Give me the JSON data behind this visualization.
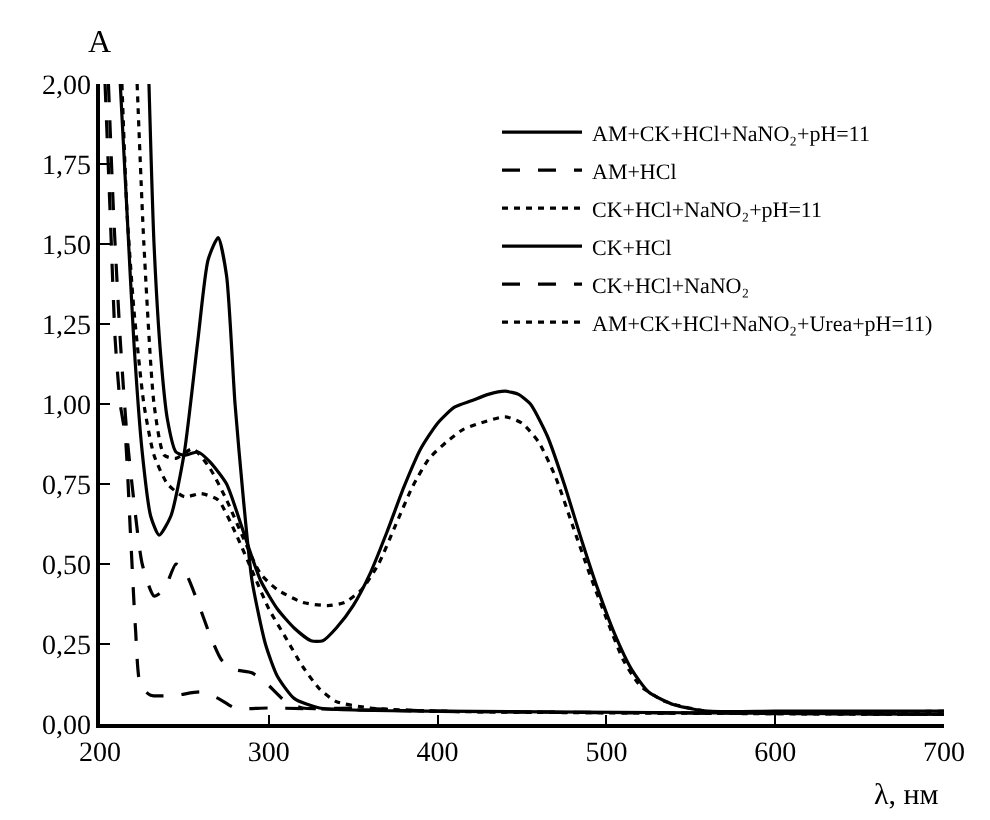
{
  "chart_data": {
    "type": "line",
    "xlabel": "λ, нм",
    "ylabel": "A",
    "xlim": [
      200,
      700
    ],
    "xticks": [
      200,
      300,
      400,
      500,
      600,
      700
    ],
    "ylim": [
      0,
      2
    ],
    "yticks": [
      {
        "value": 0,
        "label": "0,00"
      },
      {
        "value": 0.25,
        "label": "0,25"
      },
      {
        "value": 0.5,
        "label": "0,50"
      },
      {
        "value": 0.75,
        "label": "0,75"
      },
      {
        "value": 1,
        "label": "1,00"
      },
      {
        "value": 1.25,
        "label": "1,25"
      },
      {
        "value": 1.5,
        "label": "1,50"
      },
      {
        "value": 1.75,
        "label": "1,75"
      },
      {
        "value": 2,
        "label": "2,00"
      }
    ],
    "grid": false,
    "legend": "top right",
    "marker": "none",
    "series": [
      {
        "name": "AM+CK+HCl+NaNO₂+pH=11",
        "color": "#000000",
        "line_style": "solid",
        "x": [
          229,
          232,
          236,
          240,
          245,
          250,
          258,
          265,
          275,
          285,
          295,
          305,
          315,
          325,
          332,
          340,
          350,
          360,
          370,
          380,
          390,
          400,
          410,
          420,
          430,
          440,
          448,
          455,
          465,
          475,
          485,
          495,
          505,
          515,
          525,
          540,
          560,
          600,
          650,
          700
        ],
        "values": [
          2.0,
          1.5,
          1.15,
          0.95,
          0.85,
          0.84,
          0.85,
          0.82,
          0.75,
          0.6,
          0.45,
          0.36,
          0.3,
          0.26,
          0.26,
          0.3,
          0.37,
          0.47,
          0.6,
          0.74,
          0.86,
          0.94,
          0.99,
          1.01,
          1.03,
          1.04,
          1.03,
          1.0,
          0.9,
          0.75,
          0.58,
          0.42,
          0.28,
          0.17,
          0.1,
          0.06,
          0.04,
          0.04,
          0.04,
          0.04
        ]
      },
      {
        "name": "AM+HCl",
        "color": "#000000",
        "line_style": "dashed",
        "x": [
          205,
          208,
          212,
          216,
          220,
          225,
          232,
          238,
          245,
          250,
          258,
          265,
          272,
          280,
          290,
          300,
          310,
          320,
          350,
          400,
          700
        ],
        "values": [
          2.0,
          1.6,
          1.2,
          0.9,
          0.7,
          0.5,
          0.4,
          0.42,
          0.5,
          0.48,
          0.38,
          0.28,
          0.2,
          0.17,
          0.16,
          0.12,
          0.07,
          0.05,
          0.05,
          0.04,
          0.03
        ]
      },
      {
        "name": "CK+HCl+NaNO₂+pH=11",
        "color": "#000000",
        "line_style": "dotted",
        "x": [
          213,
          216,
          220,
          226,
          232,
          240,
          250,
          260,
          270,
          280,
          290,
          300,
          310,
          320,
          330,
          340,
          360,
          400,
          700
        ],
        "values": [
          2.0,
          1.6,
          1.3,
          1.0,
          0.84,
          0.75,
          0.71,
          0.72,
          0.7,
          0.6,
          0.48,
          0.36,
          0.27,
          0.18,
          0.11,
          0.07,
          0.05,
          0.04,
          0.03
        ]
      },
      {
        "name": "CK+HCl",
        "color": "#000000",
        "line_style": "solid",
        "x": [
          212,
          216,
          220,
          225,
          230,
          235,
          242,
          250,
          258,
          264,
          270,
          275,
          280,
          285,
          290,
          298,
          305,
          315,
          330,
          400,
          700
        ],
        "values": [
          2.0,
          1.6,
          1.2,
          0.85,
          0.65,
          0.59,
          0.65,
          0.85,
          1.2,
          1.45,
          1.52,
          1.4,
          1.0,
          0.7,
          0.45,
          0.25,
          0.15,
          0.08,
          0.05,
          0.04,
          0.03
        ]
      },
      {
        "name": "CK+HCl+NaNO₂",
        "color": "#000000",
        "line_style": "dashed",
        "x": [
          203,
          206,
          209,
          212,
          215,
          218,
          221,
          224,
          230,
          245,
          260,
          270,
          280,
          300,
          400,
          700
        ],
        "values": [
          2.0,
          1.6,
          1.2,
          1.0,
          0.9,
          0.6,
          0.3,
          0.12,
          0.09,
          0.09,
          0.1,
          0.08,
          0.05,
          0.05,
          0.04,
          0.03
        ]
      },
      {
        "name": "AM+CK+HCl+NaNO₂+Urea+pH=11)",
        "color": "#000000",
        "line_style": "dotted",
        "x": [
          222,
          226,
          232,
          238,
          245,
          255,
          265,
          275,
          285,
          295,
          305,
          320,
          335,
          345,
          355,
          365,
          375,
          385,
          395,
          405,
          415,
          425,
          440,
          450,
          460,
          470,
          480,
          490,
          500,
          510,
          520,
          535,
          560,
          700
        ],
        "values": [
          2.0,
          1.5,
          1.0,
          0.84,
          0.83,
          0.86,
          0.8,
          0.7,
          0.58,
          0.47,
          0.42,
          0.38,
          0.37,
          0.38,
          0.42,
          0.5,
          0.62,
          0.74,
          0.83,
          0.88,
          0.92,
          0.94,
          0.96,
          0.94,
          0.88,
          0.77,
          0.62,
          0.47,
          0.33,
          0.2,
          0.12,
          0.07,
          0.04,
          0.04
        ]
      }
    ]
  }
}
